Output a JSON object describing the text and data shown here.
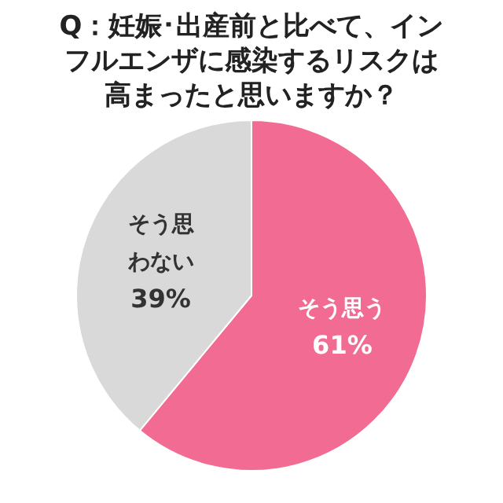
{
  "chart_data": {
    "type": "pie",
    "title": "Q：妊娠･出産前と比べて、インフルエンザに感染するリスクは高まったと思いますか？",
    "categories": [
      "そう思う",
      "そう思わない"
    ],
    "values": [
      61,
      39
    ],
    "colors": [
      "#f26b93",
      "#d9d9d9"
    ],
    "value_labels": [
      "61%",
      "39%"
    ],
    "legend": false
  }
}
